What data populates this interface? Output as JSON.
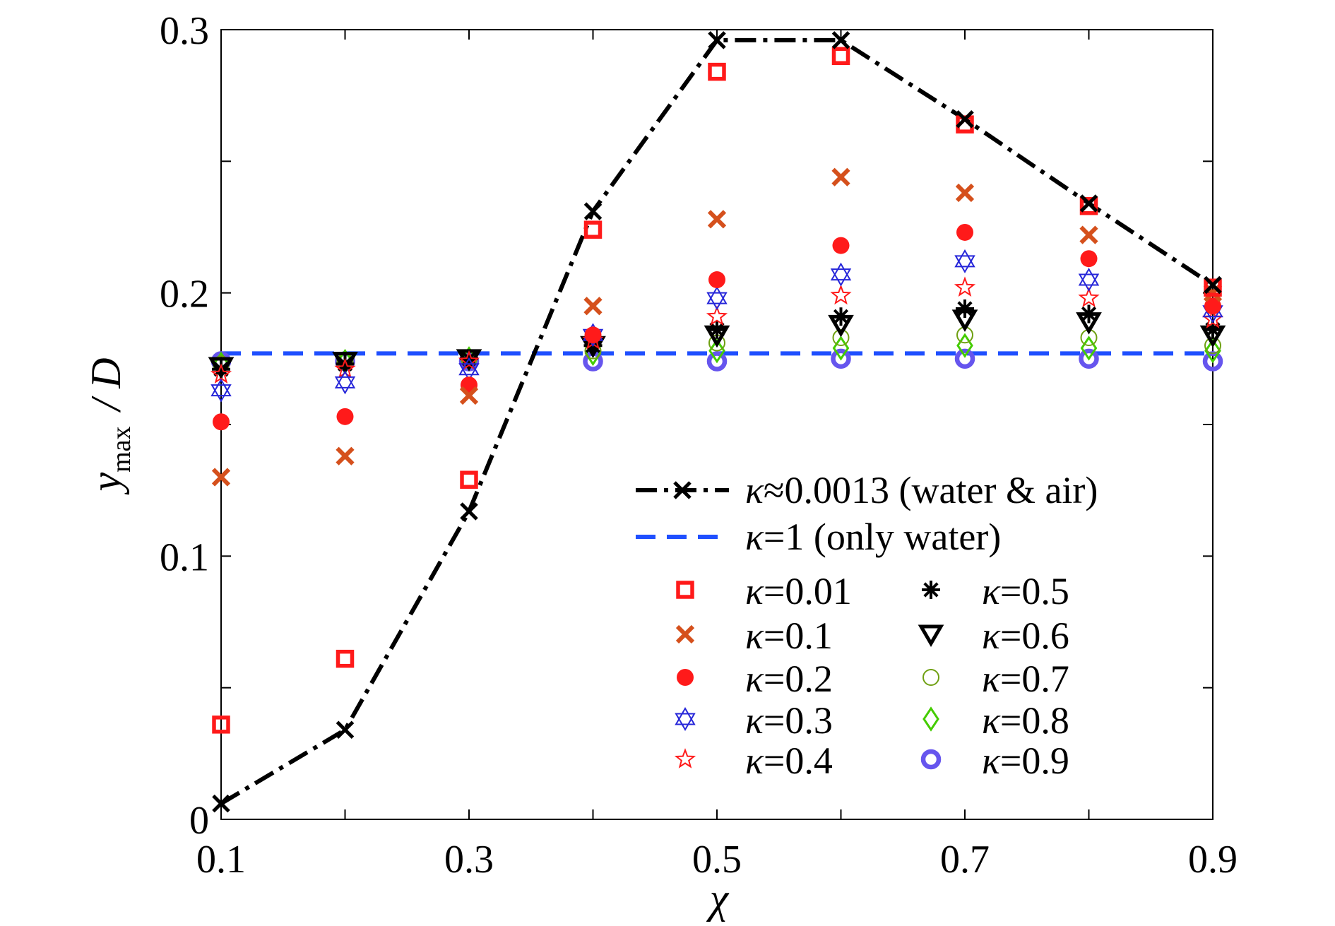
{
  "chart_data": {
    "type": "scatter",
    "xlabel": "χ",
    "ylabel": {
      "y": "y",
      "sub": "max",
      "rest": "/ D"
    },
    "xlim": [
      0.1,
      0.9
    ],
    "ylim": [
      0,
      0.3
    ],
    "xticks": [
      "0.1",
      "0.3",
      "0.5",
      "0.7",
      "0.9"
    ],
    "yticks": [
      "0",
      "0.1",
      "0.2",
      "0.3"
    ],
    "x": [
      0.1,
      0.2,
      0.3,
      0.4,
      0.5,
      0.6,
      0.7,
      0.8,
      0.9
    ],
    "grid": false,
    "legend_position": "lower-right",
    "series": [
      {
        "name": "κ≈0.0013 (water & air)",
        "kappa": "κ",
        "rest": "≈0.0013 (water & air)",
        "marker": "x-line",
        "style": "dashdot",
        "color": "#000000",
        "values": [
          0.006,
          0.034,
          0.117,
          0.231,
          0.296,
          0.296,
          0.266,
          0.234,
          0.203
        ]
      },
      {
        "name": "κ=1 (only water)",
        "kappa": "κ",
        "rest": "=1 (only water)",
        "marker": "none",
        "style": "dashed",
        "color": "#1f4fff",
        "values": [
          0.177,
          0.177,
          0.177,
          0.177,
          0.177,
          0.177,
          0.177,
          0.177,
          0.177
        ]
      },
      {
        "name": "κ=0.01",
        "kappa": "κ",
        "rest": "=0.01",
        "marker": "square",
        "color": "#ff1a1a",
        "values": [
          0.036,
          0.061,
          0.129,
          0.224,
          0.284,
          0.29,
          0.264,
          0.233,
          0.202
        ]
      },
      {
        "name": "κ=0.1",
        "kappa": "κ",
        "rest": "=0.1",
        "marker": "x",
        "color": "#d5501c",
        "values": [
          0.13,
          0.138,
          0.161,
          0.195,
          0.228,
          0.244,
          0.238,
          0.222,
          0.2
        ]
      },
      {
        "name": "κ=0.2",
        "kappa": "κ",
        "rest": "=0.2",
        "marker": "dot",
        "color": "#ff1a1a",
        "values": [
          0.151,
          0.153,
          0.165,
          0.184,
          0.205,
          0.218,
          0.223,
          0.213,
          0.195
        ]
      },
      {
        "name": "κ=0.3",
        "kappa": "κ",
        "rest": "=0.3",
        "marker": "hexagram",
        "color": "#2626d9",
        "values": [
          0.163,
          0.166,
          0.171,
          0.184,
          0.198,
          0.207,
          0.212,
          0.205,
          0.193
        ]
      },
      {
        "name": "κ=0.4",
        "kappa": "κ",
        "rest": "=0.4",
        "marker": "star",
        "color": "#ff1a1a",
        "values": [
          0.169,
          0.171,
          0.174,
          0.182,
          0.191,
          0.199,
          0.202,
          0.198,
          0.19
        ]
      },
      {
        "name": "κ=0.5",
        "kappa": "κ",
        "rest": "=0.5",
        "marker": "asterisk",
        "color": "#000000",
        "values": [
          0.171,
          0.173,
          0.175,
          0.18,
          0.186,
          0.191,
          0.194,
          0.192,
          0.186
        ]
      },
      {
        "name": "κ=0.6",
        "kappa": "κ",
        "rest": "=0.6",
        "marker": "tri-down",
        "color": "#000000",
        "values": [
          0.172,
          0.174,
          0.175,
          0.18,
          0.184,
          0.188,
          0.19,
          0.189,
          0.184
        ]
      },
      {
        "name": "κ=0.7",
        "kappa": "κ",
        "rest": "=0.7",
        "marker": "circle-open",
        "color": "#6fa012",
        "values": [
          0.173,
          0.174,
          0.175,
          0.178,
          0.181,
          0.183,
          0.184,
          0.183,
          0.18
        ]
      },
      {
        "name": "κ=0.8",
        "kappa": "κ",
        "rest": "=0.8",
        "marker": "diamond",
        "color": "#44cc00",
        "values": [
          0.173,
          0.174,
          0.175,
          0.177,
          0.178,
          0.179,
          0.18,
          0.179,
          0.178
        ]
      },
      {
        "name": "κ=0.9",
        "kappa": "κ",
        "rest": "=0.9",
        "marker": "ring",
        "color": "#6655ee",
        "values": [
          0.174,
          0.174,
          0.174,
          0.174,
          0.174,
          0.175,
          0.175,
          0.175,
          0.174
        ]
      }
    ]
  }
}
